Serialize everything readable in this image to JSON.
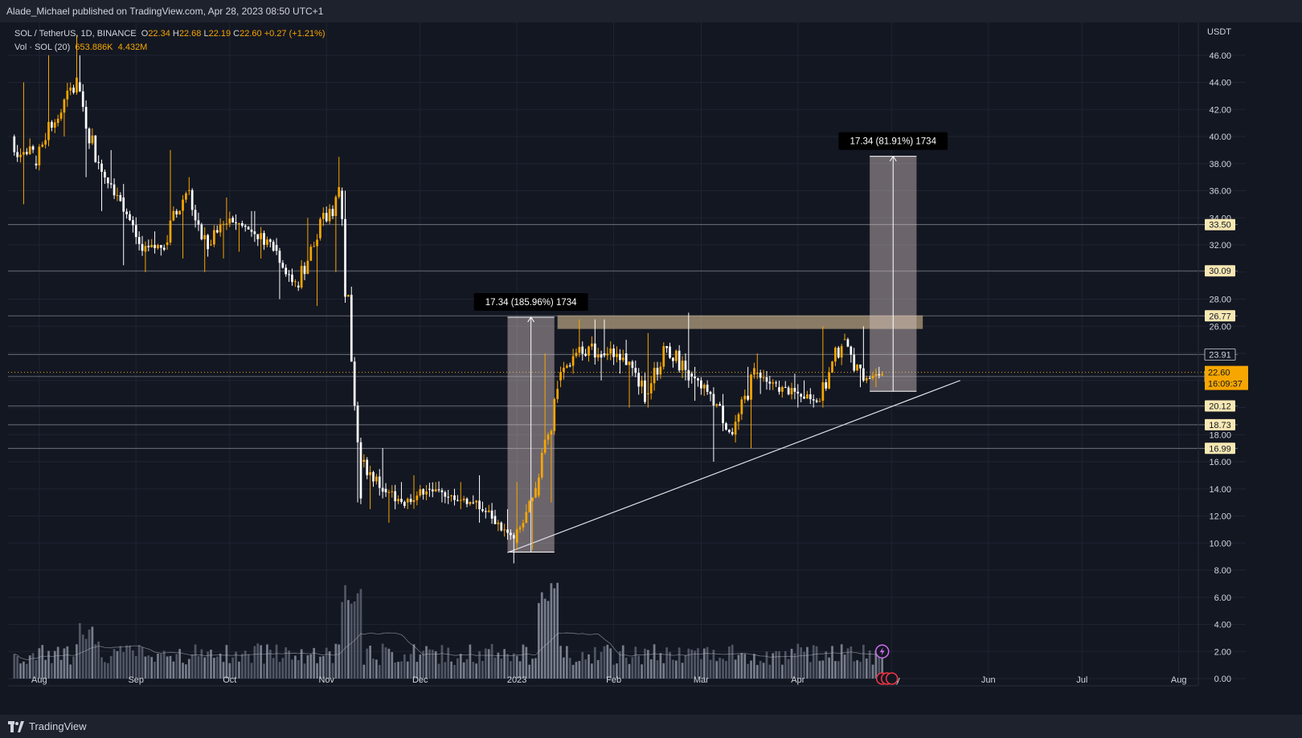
{
  "header": {
    "published_by": "Alade_Michael published on TradingView.com, Apr 28, 2023 08:50 UTC+1"
  },
  "legend": {
    "symbol": "SOL / TetherUS, 1D, BINANCE",
    "open_label": "O",
    "open": "22.34",
    "high_label": "H",
    "high": "22.68",
    "low_label": "L",
    "low": "22.19",
    "close_label": "C",
    "close": "22.60",
    "change": "+0.27 (+1.21%)",
    "volume_label": "Vol · SOL (20)",
    "volume": "653.886K",
    "volume_ma": "4.432M"
  },
  "brand": {
    "name": "TradingView"
  },
  "colors": {
    "background": "#131722",
    "up": "#f7a600",
    "down": "#ffffff",
    "level_line": "#ffffff",
    "price_tag": "#f7a600"
  },
  "chart_data": {
    "type": "candlestick",
    "symbol": "SOL / TetherUS",
    "interval": "1D",
    "exchange": "BINANCE",
    "y_axis_unit": "USDT",
    "ylim": [
      0,
      48
    ],
    "y_ticks": [
      "46.00",
      "44.00",
      "42.00",
      "40.00",
      "38.00",
      "36.00",
      "34.00",
      "32.00",
      "30.00",
      "28.00",
      "26.00",
      "24.00",
      "22.00",
      "20.00",
      "18.00",
      "16.00",
      "14.00",
      "12.00",
      "10.00",
      "8.00",
      "6.00",
      "4.00",
      "2.00",
      "0.00"
    ],
    "x_ticks": [
      "Aug",
      "Sep",
      "Oct",
      "Nov",
      "Dec",
      "2023",
      "Feb",
      "Mar",
      "Apr",
      "May",
      "Jun",
      "Jul",
      "Aug"
    ],
    "x_range": [
      "2022-07-22",
      "2023-08-07"
    ],
    "horizontal_levels": [
      {
        "value": 33.5,
        "label": "33.50"
      },
      {
        "value": 30.09,
        "label": "30.09"
      },
      {
        "value": 26.77,
        "label": "26.77"
      },
      {
        "value": 23.91,
        "label": "23.91"
      },
      {
        "value": 22.29,
        "label": "22.29"
      },
      {
        "value": 20.12,
        "label": "20.12"
      },
      {
        "value": 18.73,
        "label": "18.73"
      },
      {
        "value": 16.99,
        "label": "16.99"
      }
    ],
    "last_price": {
      "value": 22.6,
      "label": "22.60",
      "countdown": "16:09:37"
    },
    "resistance_zone": {
      "x_start": "2023-01-14",
      "x_end": "2023-05-11",
      "y_low": 25.8,
      "y_high": 26.8
    },
    "trendline": {
      "x0": "2022-12-29",
      "y0": 9.3,
      "x1": "2023-05-23",
      "y1": 22.0
    },
    "measurements": [
      {
        "label": "17.34 (185.96%) 1734",
        "x_start": "2022-12-29",
        "x_end": "2023-01-13",
        "y_low": 9.33,
        "y_high": 26.67
      },
      {
        "label": "17.34 (81.91%) 1734",
        "x_start": "2023-04-24",
        "x_end": "2023-05-09",
        "y_low": 21.2,
        "y_high": 38.54
      }
    ],
    "candles_weekly_approx": [
      {
        "x": "2022-07-24",
        "o": 40.0,
        "h": 44.0,
        "l": 35.0,
        "c": 38.0
      },
      {
        "x": "2022-07-31",
        "o": 38.0,
        "h": 46.0,
        "l": 37.5,
        "c": 42.0
      },
      {
        "x": "2022-08-07",
        "o": 41.0,
        "h": 47.5,
        "l": 40.0,
        "c": 44.0
      },
      {
        "x": "2022-08-14",
        "o": 44.0,
        "h": 46.0,
        "l": 37.0,
        "c": 38.0
      },
      {
        "x": "2022-08-21",
        "o": 38.0,
        "h": 39.0,
        "l": 34.5,
        "c": 35.5
      },
      {
        "x": "2022-08-28",
        "o": 35.5,
        "h": 36.5,
        "l": 30.5,
        "c": 31.5
      },
      {
        "x": "2022-09-04",
        "o": 31.5,
        "h": 33.0,
        "l": 30.0,
        "c": 32.0
      },
      {
        "x": "2022-09-11",
        "o": 32.0,
        "h": 39.0,
        "l": 31.0,
        "c": 36.0
      },
      {
        "x": "2022-09-18",
        "o": 36.0,
        "h": 37.0,
        "l": 30.0,
        "c": 32.0
      },
      {
        "x": "2022-09-25",
        "o": 32.0,
        "h": 35.5,
        "l": 31.0,
        "c": 34.0
      },
      {
        "x": "2022-10-02",
        "o": 34.0,
        "h": 34.5,
        "l": 31.5,
        "c": 33.0
      },
      {
        "x": "2022-10-09",
        "o": 33.0,
        "h": 34.5,
        "l": 31.0,
        "c": 32.0
      },
      {
        "x": "2022-10-16",
        "o": 32.0,
        "h": 32.5,
        "l": 28.0,
        "c": 29.0
      },
      {
        "x": "2022-10-23",
        "o": 29.0,
        "h": 34.0,
        "l": 27.5,
        "c": 32.5
      },
      {
        "x": "2022-10-30",
        "o": 32.5,
        "h": 38.5,
        "l": 30.0,
        "c": 36.0
      },
      {
        "x": "2022-11-06",
        "o": 36.0,
        "h": 36.0,
        "l": 13.0,
        "c": 16.0
      },
      {
        "x": "2022-11-13",
        "o": 16.0,
        "h": 17.0,
        "l": 12.5,
        "c": 14.0
      },
      {
        "x": "2022-11-20",
        "o": 14.0,
        "h": 14.5,
        "l": 11.5,
        "c": 13.0
      },
      {
        "x": "2022-11-27",
        "o": 13.0,
        "h": 15.0,
        "l": 12.5,
        "c": 14.0
      },
      {
        "x": "2022-12-04",
        "o": 14.0,
        "h": 14.5,
        "l": 13.0,
        "c": 13.5
      },
      {
        "x": "2022-12-11",
        "o": 13.5,
        "h": 14.5,
        "l": 12.5,
        "c": 13.0
      },
      {
        "x": "2022-12-18",
        "o": 13.0,
        "h": 15.0,
        "l": 11.5,
        "c": 12.0
      },
      {
        "x": "2022-12-25",
        "o": 12.0,
        "h": 12.5,
        "l": 8.5,
        "c": 10.0
      },
      {
        "x": "2023-01-01",
        "o": 10.0,
        "h": 14.5,
        "l": 9.5,
        "c": 13.5
      },
      {
        "x": "2023-01-08",
        "o": 13.5,
        "h": 24.0,
        "l": 13.0,
        "c": 22.0
      },
      {
        "x": "2023-01-15",
        "o": 22.0,
        "h": 26.5,
        "l": 21.5,
        "c": 24.5
      },
      {
        "x": "2023-01-22",
        "o": 24.5,
        "h": 26.5,
        "l": 22.0,
        "c": 24.0
      },
      {
        "x": "2023-01-29",
        "o": 24.0,
        "h": 26.5,
        "l": 22.5,
        "c": 24.0
      },
      {
        "x": "2023-02-05",
        "o": 24.0,
        "h": 25.0,
        "l": 20.0,
        "c": 21.0
      },
      {
        "x": "2023-02-12",
        "o": 21.0,
        "h": 25.5,
        "l": 20.0,
        "c": 24.5
      },
      {
        "x": "2023-02-19",
        "o": 24.5,
        "h": 27.0,
        "l": 22.0,
        "c": 22.5
      },
      {
        "x": "2023-02-26",
        "o": 22.5,
        "h": 23.0,
        "l": 20.5,
        "c": 21.0
      },
      {
        "x": "2023-03-05",
        "o": 21.0,
        "h": 21.0,
        "l": 16.0,
        "c": 18.0
      },
      {
        "x": "2023-03-12",
        "o": 18.0,
        "h": 23.0,
        "l": 17.0,
        "c": 22.5
      },
      {
        "x": "2023-03-19",
        "o": 22.5,
        "h": 24.0,
        "l": 21.0,
        "c": 21.5
      },
      {
        "x": "2023-03-26",
        "o": 21.5,
        "h": 22.5,
        "l": 20.0,
        "c": 21.0
      },
      {
        "x": "2023-04-02",
        "o": 21.0,
        "h": 22.0,
        "l": 20.0,
        "c": 20.5
      },
      {
        "x": "2023-04-09",
        "o": 20.5,
        "h": 26.0,
        "l": 20.0,
        "c": 25.0
      },
      {
        "x": "2023-04-16",
        "o": 25.0,
        "h": 26.0,
        "l": 21.5,
        "c": 22.0
      },
      {
        "x": "2023-04-23",
        "o": 22.0,
        "h": 23.0,
        "l": 21.5,
        "c": 22.6
      }
    ]
  }
}
